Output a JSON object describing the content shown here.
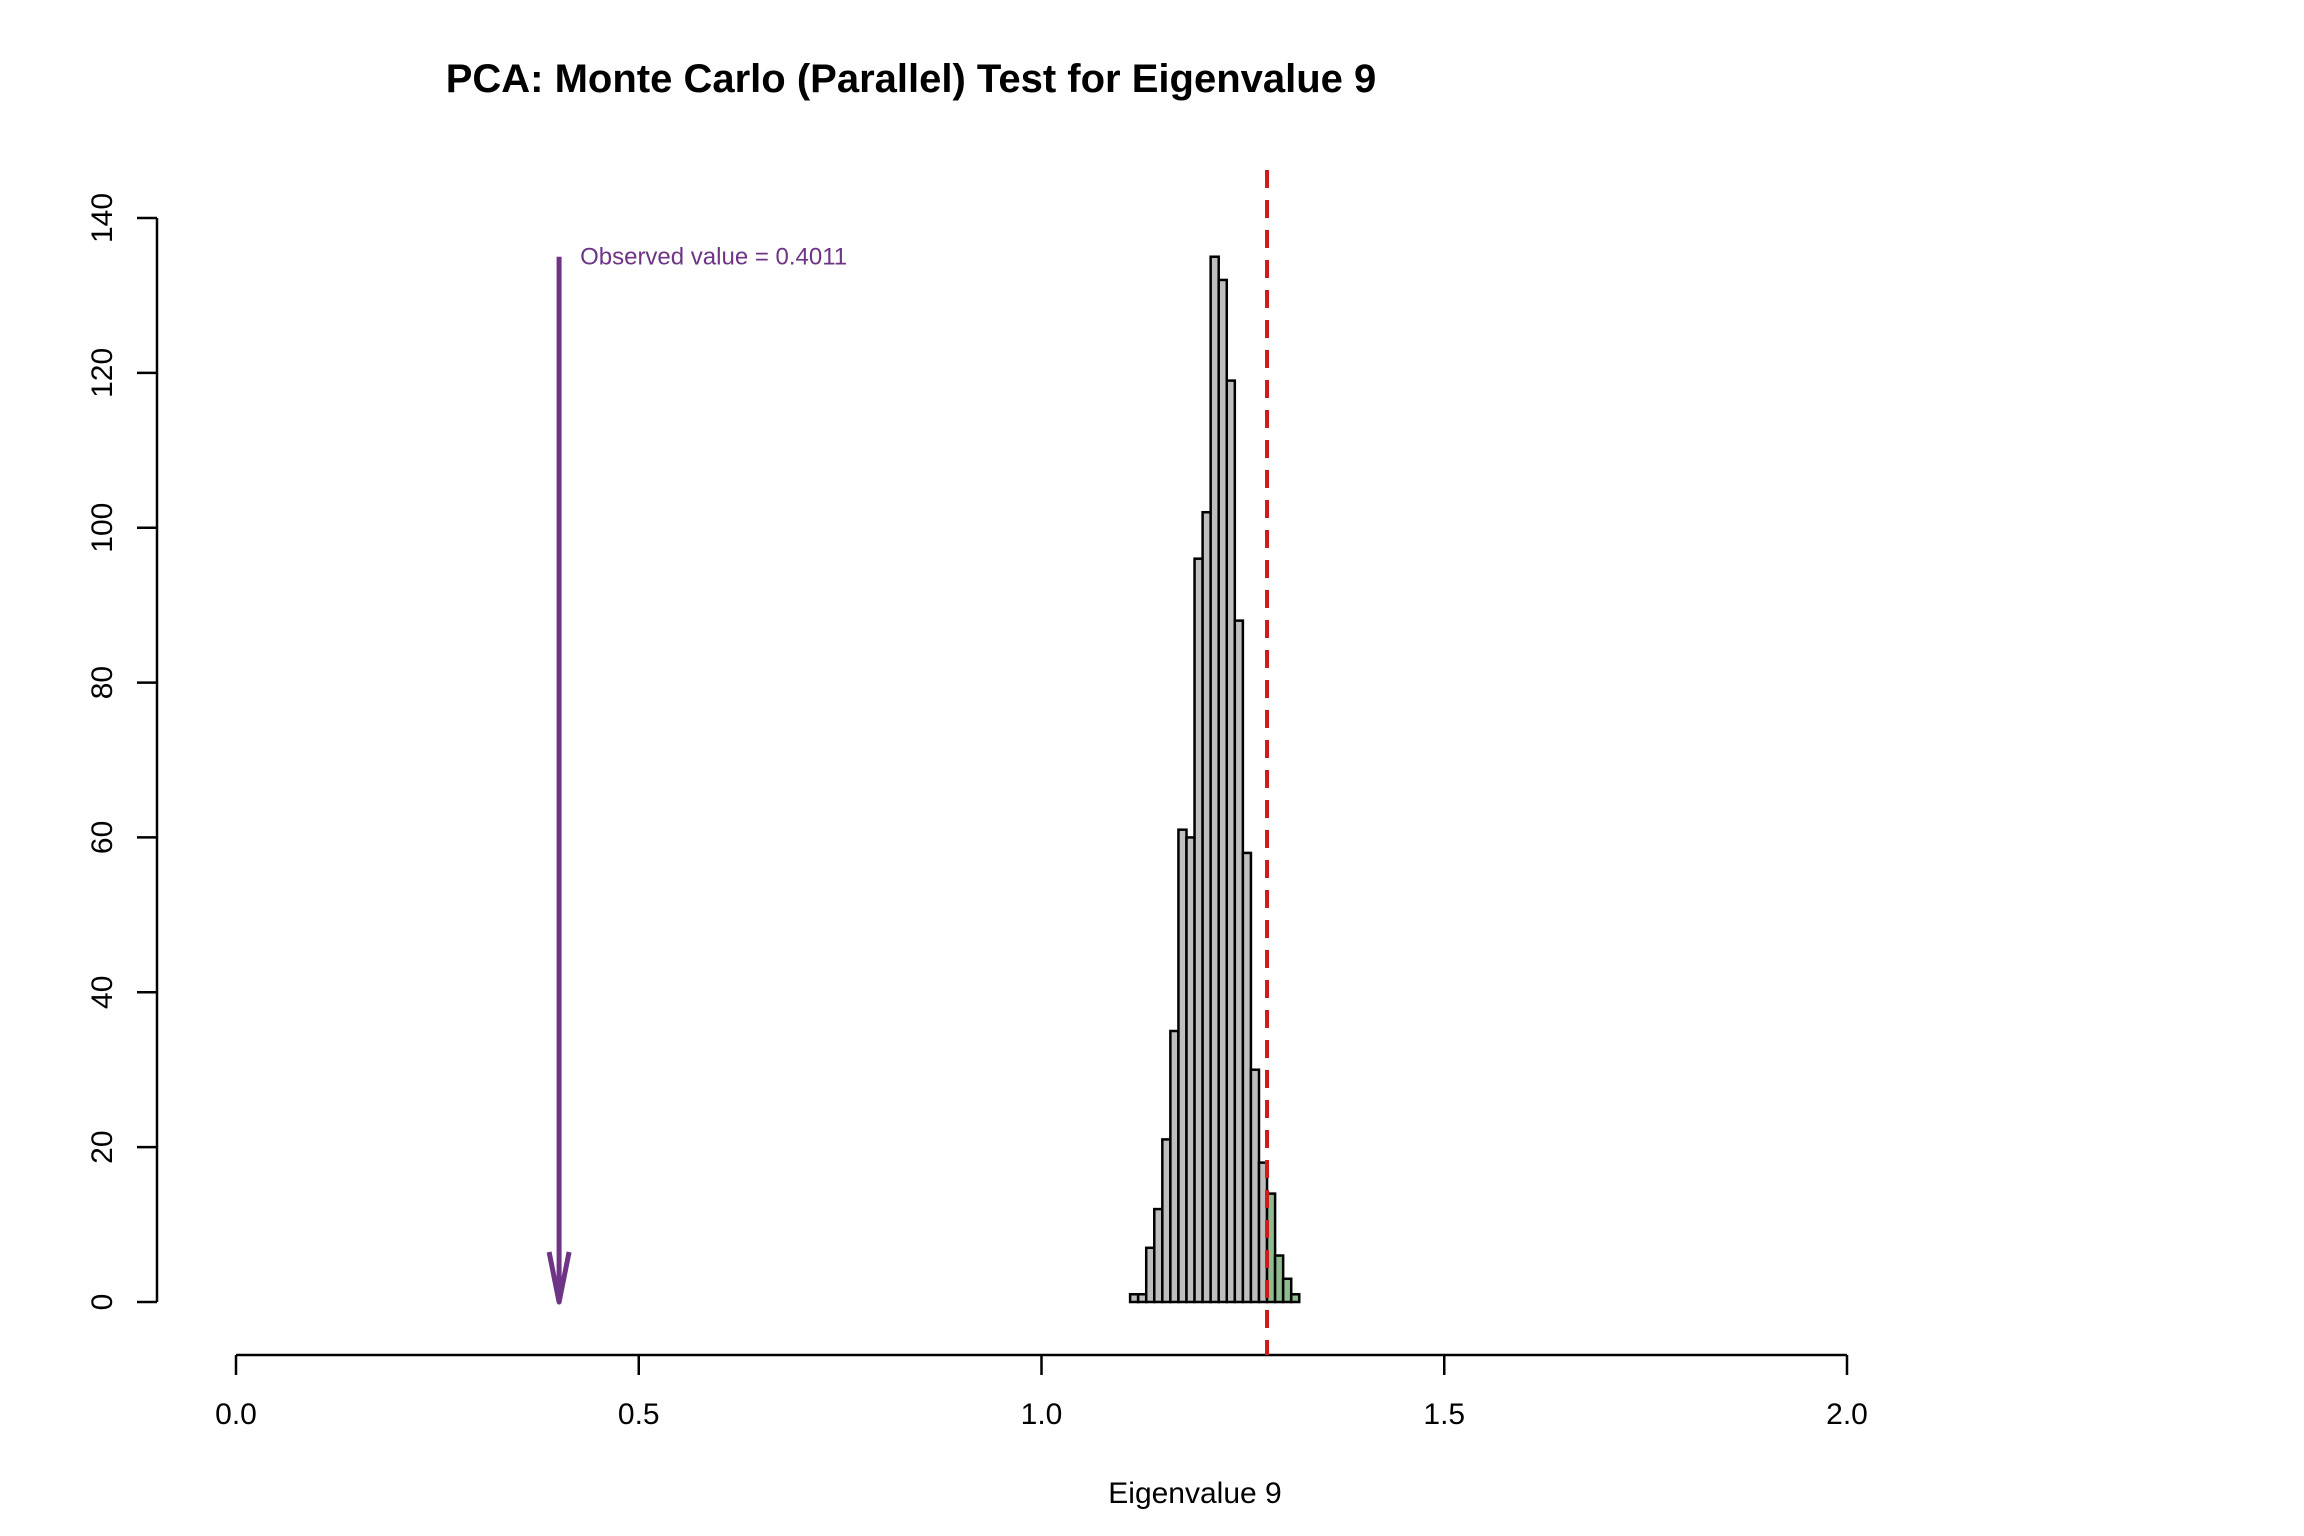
{
  "chart_data": {
    "type": "bar",
    "title": "PCA: Monte Carlo (Parallel) Test for Eigenvalue 9",
    "xlabel": "Eigenvalue 9",
    "ylabel": "",
    "xlim": [
      0.0,
      2.0
    ],
    "ylim": [
      0,
      140
    ],
    "x_ticks": [
      "0.0",
      "0.5",
      "1.0",
      "1.5",
      "2.0"
    ],
    "y_ticks": [
      "0",
      "20",
      "40",
      "60",
      "80",
      "100",
      "120",
      "140"
    ],
    "grid": false,
    "bin_width": 0.01,
    "bins": [
      {
        "x0": 1.11,
        "count": 1
      },
      {
        "x0": 1.12,
        "count": 1
      },
      {
        "x0": 1.13,
        "count": 7
      },
      {
        "x0": 1.14,
        "count": 12
      },
      {
        "x0": 1.15,
        "count": 21
      },
      {
        "x0": 1.16,
        "count": 35
      },
      {
        "x0": 1.17,
        "count": 61
      },
      {
        "x0": 1.18,
        "count": 60
      },
      {
        "x0": 1.19,
        "count": 96
      },
      {
        "x0": 1.2,
        "count": 102
      },
      {
        "x0": 1.21,
        "count": 135
      },
      {
        "x0": 1.22,
        "count": 132
      },
      {
        "x0": 1.23,
        "count": 119
      },
      {
        "x0": 1.24,
        "count": 88
      },
      {
        "x0": 1.25,
        "count": 58
      },
      {
        "x0": 1.26,
        "count": 30
      },
      {
        "x0": 1.27,
        "count": 18
      },
      {
        "x0": 1.28,
        "count": 14
      },
      {
        "x0": 1.29,
        "count": 6
      },
      {
        "x0": 1.3,
        "count": 3
      },
      {
        "x0": 1.31,
        "count": 1
      }
    ],
    "threshold": 1.28,
    "observed": {
      "value": 0.4011,
      "label": "Observed value = 0.4011",
      "arrow_top": 135
    },
    "colors": {
      "bar": "#bebebe",
      "bar_tail": "#8fbc8f",
      "threshold_line": "#cd1a1a",
      "observed": "#6e3486",
      "axis": "#000000"
    }
  }
}
